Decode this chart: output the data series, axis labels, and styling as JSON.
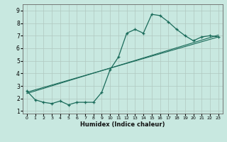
{
  "title": "",
  "xlabel": "Humidex (Indice chaleur)",
  "ylabel": "",
  "background_color": "#c8e8e0",
  "grid_color": "#b0c8c0",
  "line_color": "#1a6b5a",
  "xlim": [
    -0.5,
    23.5
  ],
  "ylim": [
    0.8,
    9.5
  ],
  "x_ticks": [
    0,
    1,
    2,
    3,
    4,
    5,
    6,
    7,
    8,
    9,
    10,
    11,
    12,
    13,
    14,
    15,
    16,
    17,
    18,
    19,
    20,
    21,
    22,
    23
  ],
  "y_ticks": [
    1,
    2,
    3,
    4,
    5,
    6,
    7,
    8,
    9
  ],
  "curve1_x": [
    0,
    1,
    2,
    3,
    4,
    5,
    6,
    7,
    8,
    9,
    10,
    11,
    12,
    13,
    14,
    15,
    16,
    17,
    18,
    19,
    20,
    21,
    22,
    23
  ],
  "curve1_y": [
    2.6,
    1.9,
    1.7,
    1.6,
    1.8,
    1.5,
    1.7,
    1.7,
    1.7,
    2.5,
    4.3,
    5.3,
    7.2,
    7.5,
    7.2,
    8.7,
    8.6,
    8.1,
    7.5,
    7.0,
    6.6,
    6.9,
    7.0,
    6.9
  ],
  "line2_x": [
    0,
    23
  ],
  "line2_y": [
    2.5,
    6.9
  ],
  "line3_x": [
    0,
    23
  ],
  "line3_y": [
    2.4,
    7.05
  ]
}
